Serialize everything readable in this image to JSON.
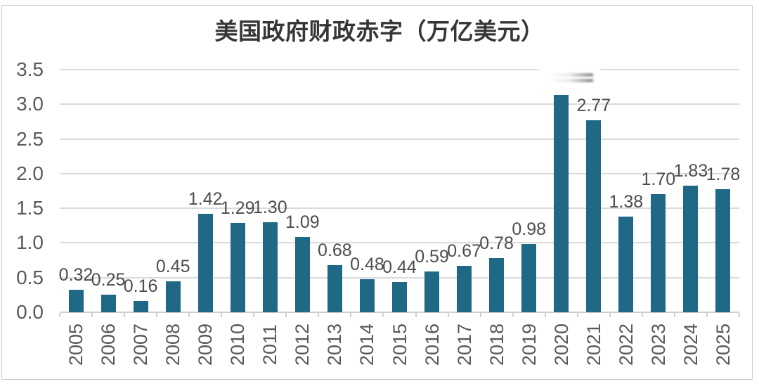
{
  "title": "美国政府财政赤字（万亿美元）",
  "chart_data": {
    "type": "bar",
    "title": "美国政府财政赤字（万亿美元）",
    "categories": [
      "2005",
      "2006",
      "2007",
      "2008",
      "2009",
      "2010",
      "2011",
      "2012",
      "2013",
      "2014",
      "2015",
      "2016",
      "2017",
      "2018",
      "2019",
      "2020",
      "2021",
      "2022",
      "2023",
      "2024",
      "2025"
    ],
    "values": [
      0.32,
      0.25,
      0.16,
      0.45,
      1.42,
      1.29,
      1.3,
      1.09,
      0.68,
      0.48,
      0.44,
      0.59,
      0.67,
      0.78,
      0.98,
      3.13,
      2.77,
      1.38,
      1.7,
      1.83,
      1.78
    ],
    "value_labels": [
      "0.32",
      "0.25",
      "0.16",
      "0.45",
      "1.42",
      "1.29",
      "1.30",
      "1.09",
      "0.68",
      "0.48",
      "0.44",
      "0.59",
      "0.67",
      "0.78",
      "0.98",
      "",
      "2.77",
      "1.38",
      "1.70",
      "1.83",
      "1.78"
    ],
    "obscured_label_index": 15,
    "xlabel": "",
    "ylabel": "",
    "ylim": [
      0,
      3.5
    ],
    "yticks": [
      "0.0",
      "0.5",
      "1.0",
      "1.5",
      "2.0",
      "2.5",
      "3.0",
      "3.5"
    ],
    "grid": true,
    "legend": null,
    "colors": {
      "bar": "#1f6886",
      "gridline": "#dadada",
      "axis_line": "#cfcfcf",
      "axis_text": "#595959",
      "value_label_text": "#4d4d4d",
      "title_text": "#363636"
    }
  }
}
